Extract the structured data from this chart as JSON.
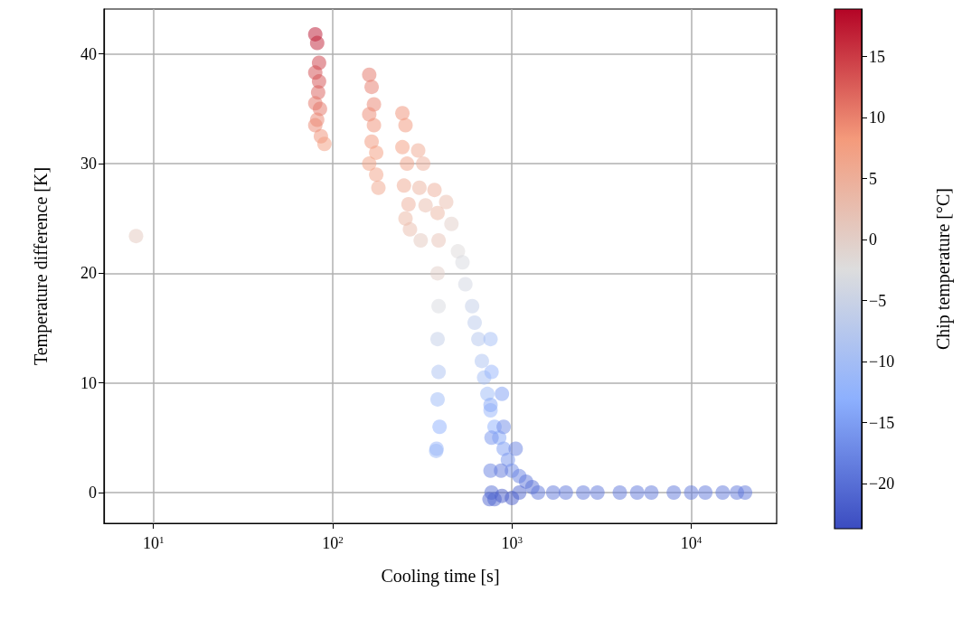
{
  "chart_data": {
    "type": "scatter",
    "xlabel": "Cooling time [s]",
    "ylabel": "Temperature difference [K]",
    "clabel": "Chip temperature [°C]",
    "log": "x",
    "grid": true,
    "marker": "circle",
    "xlim": [
      5.3,
      30000
    ],
    "ylim": [
      -2.8,
      44.1
    ],
    "xticks": [
      {
        "value": 10,
        "label": "10$^{1}$"
      },
      {
        "value": 100,
        "label": "10$^{2}$"
      },
      {
        "value": 1000,
        "label": "10$^{3}$"
      },
      {
        "value": 10000,
        "label": "10$^{4}$"
      }
    ],
    "yticks": [
      0,
      10,
      20,
      30,
      40
    ],
    "clim": [
      -23.7,
      18.9
    ],
    "cticks": [
      {
        "value": -20,
        "label": "−20"
      },
      {
        "value": -15,
        "label": "−15"
      },
      {
        "value": -10,
        "label": "−10"
      },
      {
        "value": -5,
        "label": "−5"
      },
      0,
      5,
      10,
      15
    ],
    "x": [
      8,
      80,
      82,
      84,
      80,
      84,
      83,
      80,
      85,
      82,
      80,
      86,
      90,
      160,
      165,
      170,
      160,
      170,
      165,
      175,
      160,
      175,
      180,
      245,
      255,
      245,
      260,
      250,
      265,
      255,
      270,
      300,
      320,
      305,
      330,
      310,
      370,
      385,
      390,
      385,
      390,
      385,
      390,
      385,
      395,
      380,
      378,
      430,
      460,
      500,
      530,
      550,
      600,
      620,
      650,
      680,
      700,
      730,
      760,
      800,
      850,
      900,
      950,
      1000,
      1100,
      1200,
      1300,
      760,
      770,
      760,
      770,
      760,
      770,
      750,
      800,
      880,
      900,
      870,
      880,
      1050,
      1100,
      1000,
      1400,
      1700,
      2000,
      2500,
      3000,
      4000,
      5000,
      6000,
      8000,
      10000,
      12000,
      15000,
      18000,
      20000
    ],
    "values": [
      23.4,
      41.8,
      41,
      39.2,
      38.3,
      37.5,
      36.5,
      35.5,
      35,
      34,
      33.5,
      32.5,
      31.8,
      38.1,
      37,
      35.4,
      34.5,
      33.5,
      32,
      31,
      30,
      29,
      27.8,
      34.6,
      33.5,
      31.5,
      30,
      28,
      26.3,
      25,
      24,
      31.2,
      30,
      27.8,
      26.2,
      23,
      27.6,
      25.5,
      23,
      20,
      17,
      14,
      11,
      8.5,
      6,
      4,
      3.8,
      26.5,
      24.5,
      22,
      21,
      19,
      17,
      15.5,
      14,
      12,
      10.5,
      9,
      7.5,
      6,
      5,
      4,
      3,
      2,
      1.5,
      1,
      0.5,
      14,
      11,
      8,
      5,
      2,
      0,
      -0.6,
      -0.6,
      9,
      6,
      2,
      -0.3,
      4,
      0,
      -0.5,
      0,
      0,
      0,
      0,
      0,
      0,
      0,
      0,
      0,
      0,
      0,
      0,
      0,
      0
    ],
    "cvalues": [
      1,
      18,
      17,
      15,
      14,
      13.5,
      12.5,
      11,
      11,
      10,
      9.5,
      9,
      8,
      11,
      10.5,
      10,
      9.5,
      9,
      8.5,
      8,
      7.5,
      7,
      6.5,
      9,
      8.5,
      8,
      7,
      6,
      5,
      4,
      3,
      6,
      5,
      4.5,
      3,
      1,
      5,
      4,
      2,
      0,
      -3,
      -6,
      -9,
      -11,
      -13,
      -12,
      -11,
      3,
      0,
      -2,
      -3,
      -4,
      -6,
      -7,
      -8,
      -9,
      -10,
      -11,
      -12,
      -13,
      -14,
      -15,
      -16,
      -17,
      -18,
      -19,
      -20,
      -10,
      -12,
      -14,
      -16,
      -18,
      -20,
      -21,
      -21,
      -15,
      -17,
      -19,
      -22,
      -18,
      -21,
      -22,
      -19,
      -19,
      -19,
      -19,
      -19,
      -19,
      -19,
      -19,
      -19,
      -19,
      -19,
      -19,
      -19,
      -19
    ]
  }
}
